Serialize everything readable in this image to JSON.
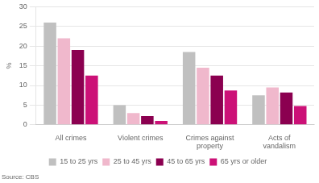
{
  "chart_data": {
    "type": "bar",
    "categories": [
      "All crimes",
      "Violent crimes",
      "Crimes against\nproperty",
      "Acts of\nvandalism"
    ],
    "series": [
      {
        "name": "15 to 25 yrs",
        "color": "#c0c0c0",
        "values": [
          26,
          5,
          18.5,
          7.5
        ]
      },
      {
        "name": "25 to 45 yrs",
        "color": "#f0b8cc",
        "values": [
          22,
          3,
          14.5,
          9.5
        ]
      },
      {
        "name": "45 to 65 yrs",
        "color": "#8b0050",
        "values": [
          19,
          2.2,
          12.5,
          8.2
        ]
      },
      {
        "name": "65 yrs or older",
        "color": "#cc1177",
        "values": [
          12.5,
          1.0,
          8.7,
          4.8
        ]
      }
    ],
    "ylim": [
      0,
      30
    ],
    "yticks": [
      0,
      5,
      10,
      15,
      20,
      25,
      30
    ],
    "ylabel": "%",
    "annotations": [
      "Source: CBS"
    ],
    "grid": true,
    "legend": "bottom"
  }
}
